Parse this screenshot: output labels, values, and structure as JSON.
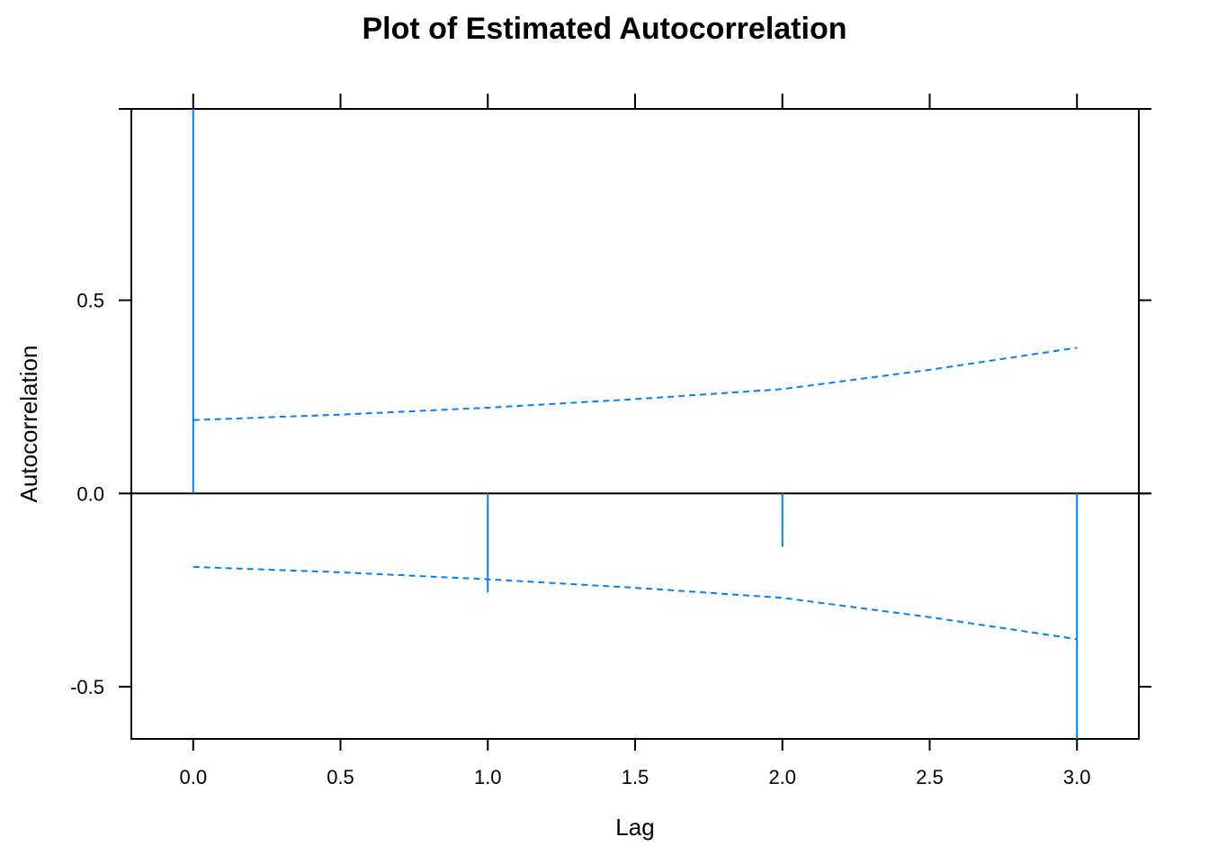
{
  "chart_data": {
    "type": "bar",
    "title": "Plot of Estimated Autocorrelation",
    "xlabel": "Lag",
    "ylabel": "Autocorrelation",
    "xlim": [
      -0.21,
      3.21
    ],
    "ylim": [
      -0.635,
      0.995
    ],
    "x_ticks": [
      0.0,
      0.5,
      1.0,
      1.5,
      2.0,
      2.5,
      3.0
    ],
    "x_tick_labels": [
      "0.0",
      "0.5",
      "1.0",
      "1.5",
      "2.0",
      "2.5",
      "3.0"
    ],
    "y_ticks": [
      -0.5,
      0.0,
      0.5
    ],
    "y_tick_labels": [
      "-0.5",
      "0.0",
      "0.5"
    ],
    "grid": false,
    "color": "#0080ff",
    "series": [
      {
        "x": [
          0,
          1,
          2,
          3
        ],
        "values": [
          1.0,
          -0.256,
          -0.138,
          -0.64
        ]
      }
    ],
    "bounds": {
      "x": [
        0.0,
        0.5,
        1.0,
        1.5,
        2.0,
        2.5,
        3.0
      ],
      "upper": [
        0.19,
        0.204,
        0.222,
        0.244,
        0.27,
        0.32,
        0.377
      ],
      "lower": [
        -0.19,
        -0.204,
        -0.222,
        -0.244,
        -0.27,
        -0.32,
        -0.377
      ]
    }
  }
}
